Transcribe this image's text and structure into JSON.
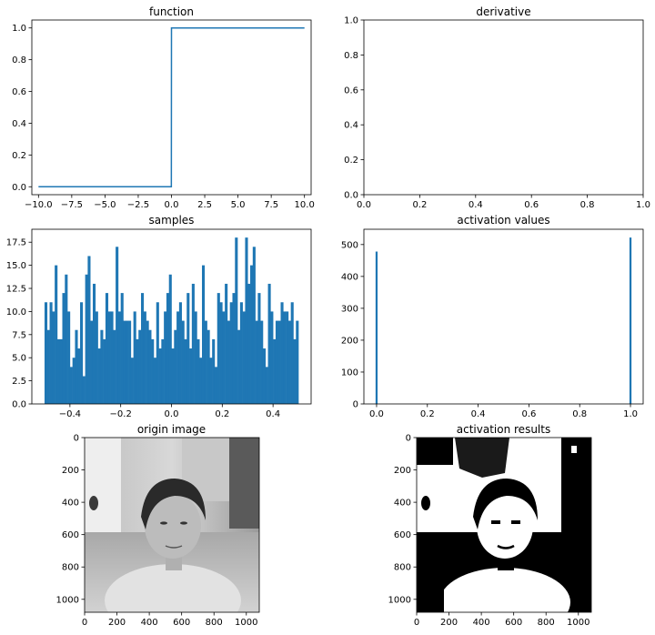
{
  "chart_data": [
    {
      "id": "function",
      "type": "line",
      "title": "function",
      "x": [
        -10.0,
        -0.01,
        0.0,
        10.0
      ],
      "y": [
        0.0,
        0.0,
        1.0,
        1.0
      ],
      "xlim": [
        -10.5,
        10.5
      ],
      "ylim": [
        -0.05,
        1.05
      ],
      "xticks": [
        -10.0,
        -7.5,
        -5.0,
        -2.5,
        0.0,
        2.5,
        5.0,
        7.5,
        10.0
      ],
      "xtick_labels": [
        "−10.0",
        "−7.5",
        "−5.0",
        "−2.5",
        "0.0",
        "2.5",
        "5.0",
        "7.5",
        "10.0"
      ],
      "yticks": [
        0.0,
        0.2,
        0.4,
        0.6,
        0.8,
        1.0
      ],
      "ytick_labels": [
        "0.0",
        "0.2",
        "0.4",
        "0.6",
        "0.8",
        "1.0"
      ],
      "color": "#1f77b4"
    },
    {
      "id": "derivative",
      "type": "line",
      "title": "derivative",
      "x": [],
      "y": [],
      "xlim": [
        0.0,
        1.0
      ],
      "ylim": [
        0.0,
        1.0
      ],
      "xticks": [
        0.0,
        0.2,
        0.4,
        0.6,
        0.8,
        1.0
      ],
      "xtick_labels": [
        "0.0",
        "0.2",
        "0.4",
        "0.6",
        "0.8",
        "1.0"
      ],
      "yticks": [
        0.0,
        0.2,
        0.4,
        0.6,
        0.8,
        1.0
      ],
      "ytick_labels": [
        "0.0",
        "0.2",
        "0.4",
        "0.6",
        "0.8",
        "1.0"
      ],
      "color": "#1f77b4"
    },
    {
      "id": "samples",
      "type": "bar",
      "title": "samples",
      "bin_start": -0.5,
      "bin_end": 0.5,
      "values": [
        11,
        8,
        11,
        10,
        15,
        7,
        7,
        12,
        14,
        10,
        4,
        5,
        8,
        6,
        11,
        3,
        14,
        16,
        9,
        13,
        10,
        6,
        8,
        7,
        12,
        10,
        10,
        8,
        17,
        10,
        12,
        9,
        9,
        9,
        5,
        10,
        7,
        8,
        12,
        10,
        9,
        8,
        7,
        5,
        11,
        6,
        7,
        10,
        12,
        14,
        6,
        8,
        10,
        11,
        9,
        7,
        12,
        6,
        13,
        10,
        7,
        5,
        15,
        9,
        8,
        5,
        7,
        4,
        12,
        11,
        10,
        13,
        9,
        11,
        12,
        18,
        8,
        11,
        10,
        18,
        13,
        15,
        17,
        9,
        12,
        9,
        6,
        4,
        13,
        10,
        7,
        9,
        9,
        11,
        10,
        10,
        9,
        11,
        7,
        9
      ],
      "xlim": [
        -0.55,
        0.55
      ],
      "ylim": [
        0,
        18.9
      ],
      "xticks": [
        -0.4,
        -0.2,
        0.0,
        0.2,
        0.4
      ],
      "xtick_labels": [
        "−0.4",
        "−0.2",
        "0.0",
        "0.2",
        "0.4"
      ],
      "yticks": [
        0.0,
        2.5,
        5.0,
        7.5,
        10.0,
        12.5,
        15.0,
        17.5
      ],
      "ytick_labels": [
        "0.0",
        "2.5",
        "5.0",
        "7.5",
        "10.0",
        "12.5",
        "15.0",
        "17.5"
      ],
      "color": "#1f77b4"
    },
    {
      "id": "activation-values",
      "type": "bar",
      "title": "activation values",
      "x": [
        0.0,
        1.0
      ],
      "values": [
        478,
        522
      ],
      "bar_width": 0.008,
      "xlim": [
        -0.05,
        1.05
      ],
      "ylim": [
        0,
        548
      ],
      "xticks": [
        0.0,
        0.2,
        0.4,
        0.6,
        0.8,
        1.0
      ],
      "xtick_labels": [
        "0.0",
        "0.2",
        "0.4",
        "0.6",
        "0.8",
        "1.0"
      ],
      "yticks": [
        0,
        100,
        200,
        300,
        400,
        500
      ],
      "ytick_labels": [
        "0",
        "100",
        "200",
        "300",
        "400",
        "500"
      ],
      "color": "#1f77b4"
    },
    {
      "id": "origin-image",
      "type": "image",
      "title": "origin image",
      "xlim": [
        0,
        1080
      ],
      "ylim": [
        1080,
        0
      ],
      "xticks": [
        0,
        200,
        400,
        600,
        800,
        1000
      ],
      "xtick_labels": [
        "0",
        "200",
        "400",
        "600",
        "800",
        "1000"
      ],
      "yticks": [
        0,
        200,
        400,
        600,
        800,
        1000
      ],
      "ytick_labels": [
        "0",
        "200",
        "400",
        "600",
        "800",
        "1000"
      ],
      "mode": "grayscale"
    },
    {
      "id": "activation-results",
      "type": "image",
      "title": "activation results",
      "xlim": [
        0,
        1080
      ],
      "ylim": [
        1080,
        0
      ],
      "xticks": [
        0,
        200,
        400,
        600,
        800,
        1000
      ],
      "xtick_labels": [
        "0",
        "200",
        "400",
        "600",
        "800",
        "1000"
      ],
      "yticks": [
        0,
        200,
        400,
        600,
        800,
        1000
      ],
      "ytick_labels": [
        "0",
        "200",
        "400",
        "600",
        "800",
        "1000"
      ],
      "mode": "binary"
    }
  ]
}
